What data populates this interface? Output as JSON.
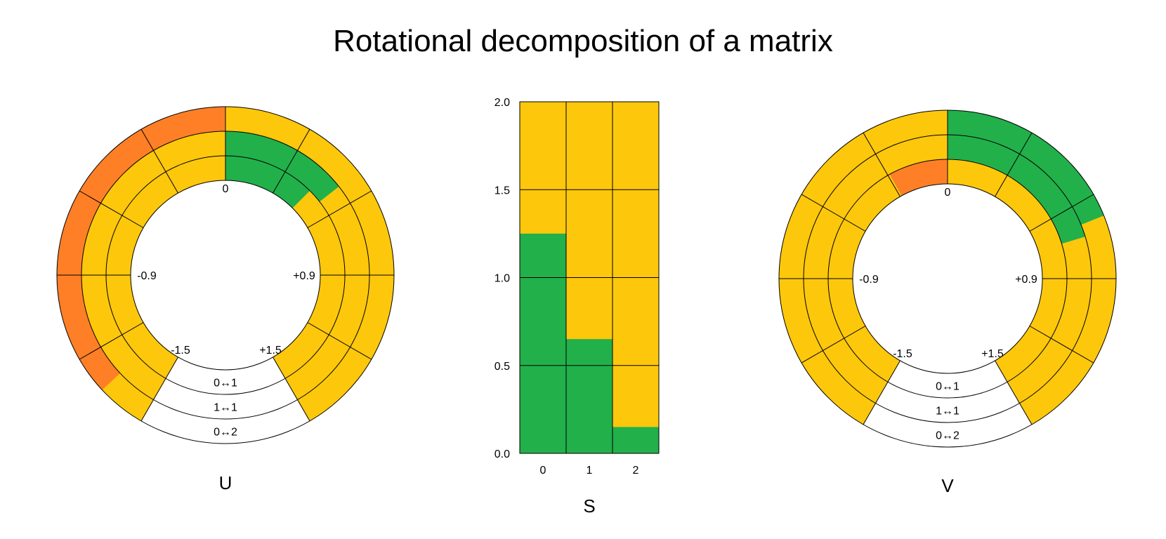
{
  "title": "Rotational decomposition of a matrix",
  "colors": {
    "yellow": "#fdc70c",
    "green": "#22b04b",
    "orange": "#ff7f27",
    "stroke": "#000000",
    "white": "#ffffff"
  },
  "chart_data": [
    {
      "type": "radial",
      "name": "U",
      "angle_labels": {
        "zero": "0",
        "neg_mid": "-0.9",
        "pos_mid": "+0.9",
        "neg_end": "-1.5",
        "pos_end": "+1.5"
      },
      "angle_range": [
        -1.5,
        1.5
      ],
      "rings": [
        {
          "label": "0↔1",
          "value": 0.45
        },
        {
          "label": "1↔1",
          "value": 0.52
        },
        {
          "label": "0↔2",
          "value": -1.33
        }
      ]
    },
    {
      "type": "bar",
      "name": "S",
      "xlabel": "S",
      "categories": [
        "0",
        "1",
        "2"
      ],
      "values": [
        1.25,
        0.65,
        0.15
      ],
      "ylim": [
        0,
        2
      ],
      "yticks": [
        "0.0",
        "0.5",
        "1.0",
        "1.5",
        "2.0"
      ],
      "grid": true
    },
    {
      "type": "radial",
      "name": "V",
      "angle_labels": {
        "zero": "0",
        "neg_mid": "-0.9",
        "pos_mid": "+0.9",
        "neg_end": "-1.5",
        "pos_end": "+1.5"
      },
      "angle_range": [
        -1.5,
        1.5
      ],
      "rings": [
        {
          "label": "0↔1",
          "value": -0.29
        },
        {
          "label": "1↔1",
          "value": 0.73
        },
        {
          "label": "0↔2",
          "value": 0.68
        }
      ]
    }
  ]
}
